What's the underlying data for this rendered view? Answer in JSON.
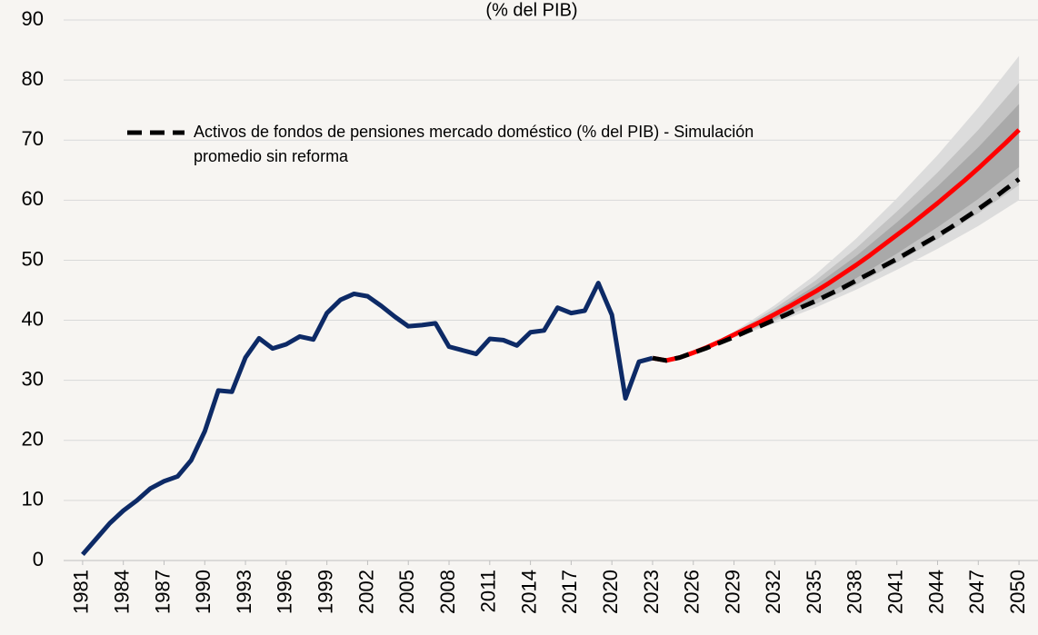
{
  "chart_data": {
    "type": "line",
    "title": "(% del PIB)",
    "x": [
      1981,
      1982,
      1983,
      1984,
      1985,
      1986,
      1987,
      1988,
      1989,
      1990,
      1991,
      1992,
      1993,
      1994,
      1995,
      1996,
      1997,
      1998,
      1999,
      2000,
      2001,
      2002,
      2003,
      2004,
      2005,
      2006,
      2007,
      2008,
      2009,
      2010,
      2011,
      2012,
      2013,
      2014,
      2015,
      2016,
      2017,
      2018,
      2019,
      2020,
      2021,
      2022,
      2023,
      2024,
      2025,
      2026,
      2027,
      2028,
      2029,
      2030,
      2031,
      2032,
      2033,
      2034,
      2035,
      2036,
      2037,
      2038,
      2039,
      2040,
      2041,
      2042,
      2043,
      2044,
      2045,
      2046,
      2047,
      2048,
      2049,
      2050
    ],
    "series": [
      {
        "color": "#0d2a66",
        "style": "solid",
        "values": [
          1.0,
          3.6,
          6.2,
          8.3,
          10.0,
          12.0,
          13.2,
          14.0,
          16.7,
          21.5,
          28.3,
          28.1,
          33.8,
          37.0,
          35.3,
          36.0,
          37.3,
          36.8,
          41.2,
          43.4,
          44.4,
          44.0,
          42.4,
          40.6,
          39.0,
          39.2,
          39.5,
          35.6,
          35.0,
          34.4,
          36.9,
          36.7,
          35.8,
          38.0,
          38.3,
          42.1,
          41.2,
          41.6,
          46.2,
          40.9,
          27.0,
          33.1,
          33.7,
          null,
          null,
          null,
          null,
          null,
          null,
          null,
          null,
          null,
          null,
          null,
          null,
          null,
          null,
          null,
          null,
          null,
          null,
          null,
          null,
          null,
          null,
          null,
          null,
          null,
          null,
          null
        ]
      },
      {
        "color": "#ff0000",
        "style": "solid",
        "values": [
          null,
          null,
          null,
          null,
          null,
          null,
          null,
          null,
          null,
          null,
          null,
          null,
          null,
          null,
          null,
          null,
          null,
          null,
          null,
          null,
          null,
          null,
          null,
          null,
          null,
          null,
          null,
          null,
          null,
          null,
          null,
          null,
          null,
          null,
          null,
          null,
          null,
          null,
          null,
          null,
          null,
          null,
          33.7,
          33.3,
          33.8,
          34.6,
          35.5,
          36.5,
          37.6,
          38.7,
          39.8,
          41.0,
          42.2,
          43.5,
          44.8,
          46.2,
          47.7,
          49.2,
          50.8,
          52.5,
          54.2,
          55.9,
          57.7,
          59.5,
          61.4,
          63.3,
          65.3,
          67.4,
          69.5,
          71.7
        ]
      },
      {
        "name": "Activos de fondos de pensiones mercado doméstico (% del PIB) - Simulación promedio sin reforma",
        "color": "#000000",
        "style": "dashed",
        "values": [
          null,
          null,
          null,
          null,
          null,
          null,
          null,
          null,
          null,
          null,
          null,
          null,
          null,
          null,
          null,
          null,
          null,
          null,
          null,
          null,
          null,
          null,
          null,
          null,
          null,
          null,
          null,
          null,
          null,
          null,
          null,
          null,
          null,
          null,
          null,
          null,
          null,
          null,
          null,
          null,
          null,
          null,
          33.7,
          33.3,
          33.8,
          34.6,
          35.4,
          36.3,
          37.2,
          38.2,
          39.1,
          40.1,
          41.1,
          42.2,
          43.2,
          44.3,
          45.4,
          46.6,
          47.8,
          49.0,
          50.2,
          51.5,
          52.8,
          54.1,
          55.5,
          57.0,
          58.5,
          60.1,
          61.8,
          63.5
        ]
      }
    ],
    "bands": [
      {
        "color": "#dcdcdc",
        "x": [
          2026,
          2029,
          2032,
          2035,
          2038,
          2041,
          2044,
          2047,
          2050
        ],
        "upper": [
          34.6,
          38.1,
          42.5,
          47.6,
          53.6,
          60.3,
          67.5,
          75.4,
          84.0
        ],
        "lower": [
          34.6,
          37.1,
          39.5,
          42.1,
          45.1,
          48.4,
          51.9,
          55.7,
          60.0
        ]
      },
      {
        "color": "#c3c3c3",
        "x": [
          2026,
          2029,
          2032,
          2035,
          2038,
          2041,
          2044,
          2047,
          2050
        ],
        "upper": [
          34.6,
          37.9,
          42.0,
          46.6,
          52.0,
          58.1,
          64.6,
          71.7,
          79.5
        ],
        "lower": [
          34.6,
          37.2,
          39.9,
          42.7,
          45.9,
          49.6,
          53.5,
          57.8,
          62.5
        ]
      },
      {
        "color": "#a9a9a9",
        "x": [
          2026,
          2029,
          2032,
          2035,
          2038,
          2041,
          2044,
          2047,
          2050
        ],
        "upper": [
          34.6,
          37.8,
          41.5,
          45.8,
          50.7,
          56.3,
          62.3,
          68.8,
          76.0
        ],
        "lower": [
          34.6,
          37.3,
          40.2,
          43.4,
          47.0,
          51.1,
          55.5,
          60.2,
          65.5
        ]
      }
    ],
    "xlim": [
      1979.6,
      2051.4
    ],
    "xticks": [
      1981,
      1984,
      1987,
      1990,
      1993,
      1996,
      1999,
      2002,
      2005,
      2008,
      2011,
      2014,
      2017,
      2020,
      2023,
      2026,
      2029,
      2032,
      2035,
      2038,
      2041,
      2044,
      2047,
      2050
    ],
    "ylim": [
      0,
      90
    ],
    "yticks": [
      0,
      10,
      20,
      30,
      40,
      50,
      60,
      70,
      80,
      90
    ],
    "grid": true
  }
}
